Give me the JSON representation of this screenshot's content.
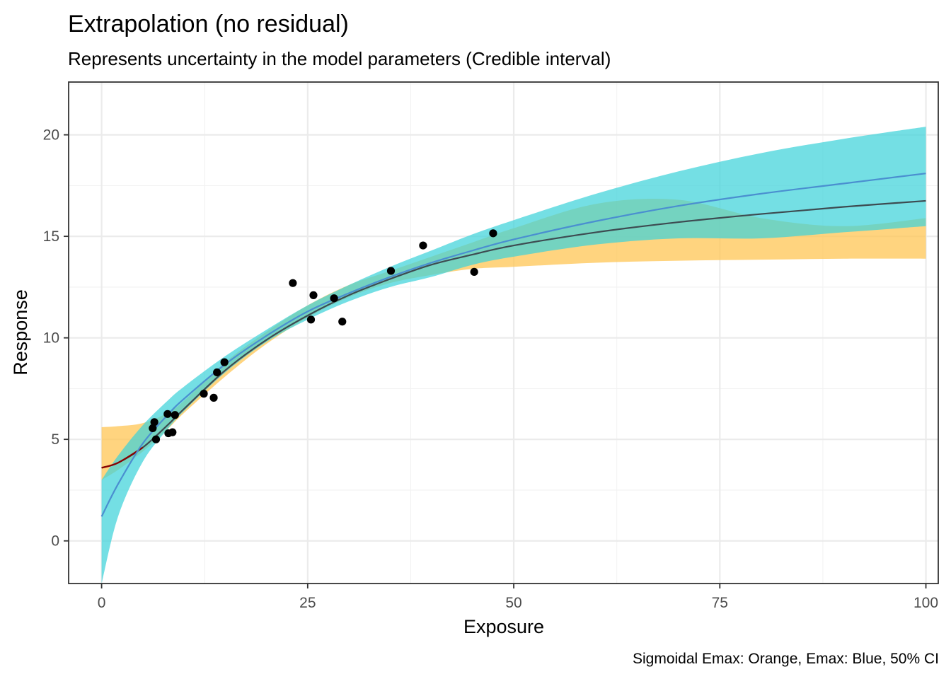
{
  "chart_data": {
    "type": "line",
    "title": "Extrapolation (no residual)",
    "subtitle": "Represents uncertainty in the model parameters (Credible interval)",
    "xlabel": "Exposure",
    "ylabel": "Response",
    "caption": "Sigmoidal Emax: Orange, Emax: Blue, 50% CI",
    "xlim": [
      -4,
      101.5
    ],
    "ylim": [
      -2.1,
      22.6
    ],
    "x_ticks": [
      0,
      25,
      50,
      75,
      100
    ],
    "y_ticks": [
      0,
      5,
      10,
      15,
      20
    ],
    "grid": true,
    "colors": {
      "sigmoid_band": "#ffc34d",
      "emax_band": "#3fd3d9",
      "overlap_band": "#6cc5a0",
      "sigmoid_line": "#3d4b51",
      "emax_line": "#4a8fd0",
      "sigmoid_line_low": "#8b0000",
      "points": "#000000"
    },
    "series": [
      {
        "x": [
          0,
          2,
          5,
          8,
          10,
          15,
          20,
          25,
          30,
          35,
          40,
          45,
          50,
          60,
          70,
          80,
          90,
          100
        ],
        "lower": [
          3.0,
          3.5,
          4.4,
          5.5,
          6.3,
          8.1,
          9.7,
          11.0,
          12.0,
          12.7,
          13.1,
          13.4,
          13.5,
          13.7,
          13.8,
          13.85,
          13.9,
          13.9
        ],
        "mid": [
          3.6,
          3.85,
          4.6,
          5.7,
          6.5,
          8.4,
          9.9,
          11.1,
          12.1,
          12.9,
          13.6,
          14.1,
          14.55,
          15.2,
          15.7,
          16.1,
          16.45,
          16.75
        ],
        "upper": [
          5.6,
          5.65,
          5.8,
          6.3,
          6.9,
          8.8,
          10.3,
          11.6,
          12.6,
          13.3,
          14.0,
          14.7,
          15.4,
          16.6,
          16.8,
          15.9,
          15.5,
          15.9
        ]
      },
      {
        "x": [
          0,
          2,
          5,
          8,
          10,
          15,
          20,
          25,
          30,
          35,
          40,
          45,
          50,
          60,
          70,
          80,
          90,
          100
        ],
        "lower": [
          -2.1,
          1.2,
          3.9,
          5.5,
          6.4,
          8.3,
          9.8,
          10.9,
          11.8,
          12.5,
          13.0,
          13.6,
          14.0,
          14.6,
          14.9,
          14.9,
          15.2,
          15.5
        ],
        "mid": [
          1.2,
          2.8,
          4.8,
          6.2,
          7.0,
          8.7,
          10.1,
          11.3,
          12.2,
          13.0,
          13.7,
          14.3,
          14.85,
          15.75,
          16.5,
          17.1,
          17.6,
          18.1
        ],
        "upper": [
          3.0,
          4.2,
          5.7,
          6.9,
          7.6,
          9.1,
          10.4,
          11.6,
          12.6,
          13.5,
          14.3,
          15.1,
          15.8,
          17.1,
          18.2,
          19.1,
          19.8,
          20.4
        ]
      }
    ],
    "points": [
      {
        "x": 6.2,
        "y": 5.55
      },
      {
        "x": 6.4,
        "y": 5.85
      },
      {
        "x": 6.6,
        "y": 5.0
      },
      {
        "x": 8.0,
        "y": 6.25
      },
      {
        "x": 8.1,
        "y": 5.3
      },
      {
        "x": 8.6,
        "y": 5.35
      },
      {
        "x": 8.9,
        "y": 6.2
      },
      {
        "x": 12.4,
        "y": 7.25
      },
      {
        "x": 13.6,
        "y": 7.05
      },
      {
        "x": 14.0,
        "y": 8.3
      },
      {
        "x": 14.9,
        "y": 8.8
      },
      {
        "x": 23.2,
        "y": 12.7
      },
      {
        "x": 25.4,
        "y": 10.9
      },
      {
        "x": 25.7,
        "y": 12.1
      },
      {
        "x": 28.2,
        "y": 11.95
      },
      {
        "x": 29.2,
        "y": 10.8
      },
      {
        "x": 35.1,
        "y": 13.3
      },
      {
        "x": 39.0,
        "y": 14.55
      },
      {
        "x": 45.2,
        "y": 13.25
      },
      {
        "x": 47.5,
        "y": 15.15
      }
    ]
  }
}
